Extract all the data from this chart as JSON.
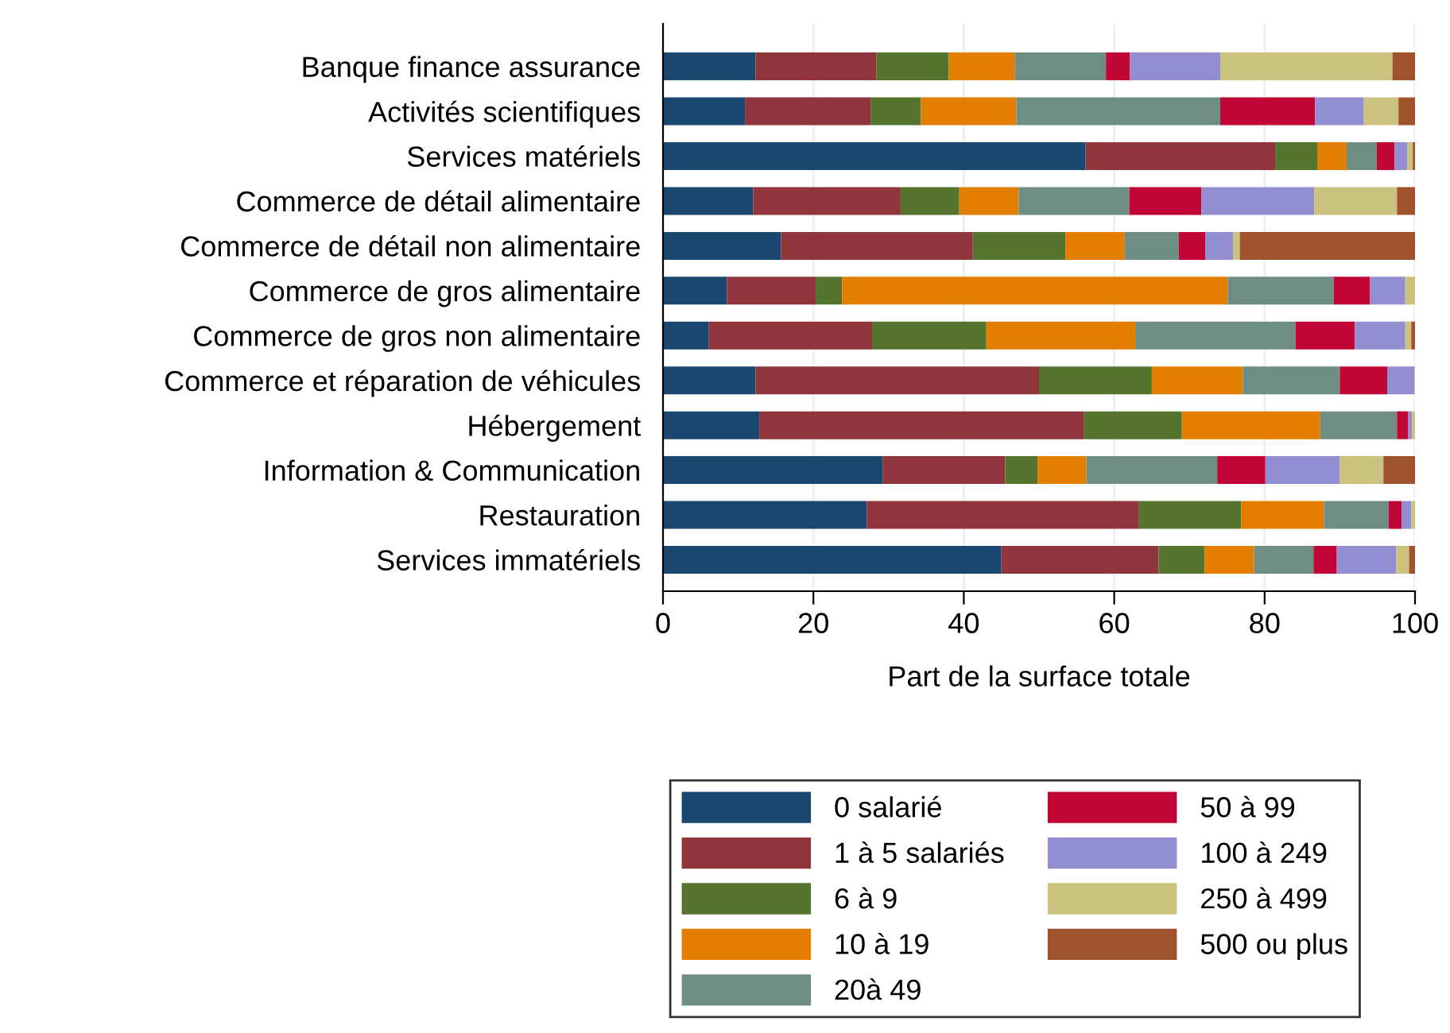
{
  "chart_data": {
    "type": "bar",
    "orientation": "horizontal",
    "stacked": true,
    "xlabel": "Part de la surface totale",
    "categories": [
      "Banque finance assurance",
      "Activités scientifiques",
      "Services matériels",
      "Commerce de détail alimentaire",
      "Commerce de détail non alimentaire",
      "Commerce de gros alimentaire",
      "Commerce de gros non alimentaire",
      "Commerce et réparation de véhicules",
      "Hébergement",
      "Information & Communication",
      "Restauration",
      "Services immatériels"
    ],
    "series": [
      {
        "name": "0 salarié",
        "color": "#1a476f",
        "values": [
          12.3,
          10.9,
          56.2,
          12.0,
          15.7,
          8.5,
          6.1,
          12.3,
          12.8,
          29.2,
          27.1,
          45.0
        ]
      },
      {
        "name": "1 à 5 salariés",
        "color": "#90353b",
        "values": [
          16.1,
          16.7,
          25.2,
          19.6,
          25.5,
          11.8,
          21.7,
          37.7,
          43.2,
          16.3,
          36.2,
          20.9
        ]
      },
      {
        "name": "6 à 9",
        "color": "#55752f",
        "values": [
          9.6,
          6.7,
          5.6,
          7.8,
          12.3,
          3.5,
          15.2,
          15.0,
          13.0,
          4.3,
          13.6,
          6.1
        ]
      },
      {
        "name": "10 à 19",
        "color": "#e37e00",
        "values": [
          8.8,
          12.7,
          3.9,
          7.9,
          7.9,
          51.3,
          19.8,
          12.1,
          18.4,
          6.5,
          11.0,
          6.6
        ]
      },
      {
        "name": "20à 49",
        "color": "#6e8e84",
        "values": [
          12.1,
          27.1,
          4.0,
          14.7,
          7.2,
          14.1,
          21.3,
          12.9,
          10.2,
          17.4,
          8.6,
          7.9
        ]
      },
      {
        "name": "50 à 99",
        "color": "#c10534",
        "values": [
          3.2,
          12.6,
          2.4,
          9.6,
          3.5,
          4.8,
          7.9,
          6.3,
          1.5,
          6.4,
          1.7,
          3.1
        ]
      },
      {
        "name": "100 à 249",
        "color": "#938dd2",
        "values": [
          12.0,
          6.5,
          1.7,
          15.0,
          3.7,
          4.7,
          6.7,
          3.6,
          0.5,
          9.9,
          1.3,
          7.9
        ]
      },
      {
        "name": "250 à 499",
        "color": "#cac27e",
        "values": [
          22.9,
          4.6,
          0.7,
          11.0,
          0.9,
          1.3,
          0.8,
          0.1,
          0.4,
          5.8,
          0.5,
          1.7
        ]
      },
      {
        "name": "500 ou plus",
        "color": "#a0522d",
        "values": [
          3.0,
          2.2,
          0.3,
          2.4,
          23.3,
          0,
          0.5,
          0,
          0,
          4.2,
          0,
          0.8
        ]
      }
    ],
    "xlim": [
      0,
      100
    ],
    "xticks": [
      0,
      20,
      40,
      60,
      80,
      100
    ],
    "grid": "x",
    "legend": "bottom"
  }
}
